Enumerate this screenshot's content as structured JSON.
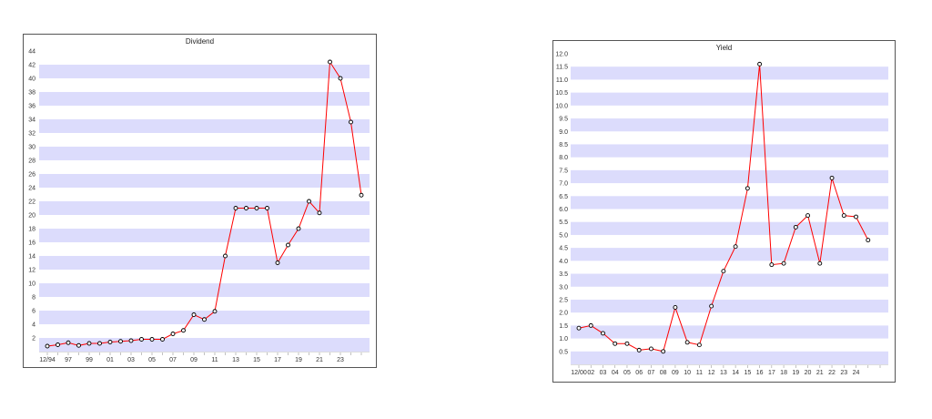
{
  "charts": [
    {
      "id": "dividend",
      "title": "Dividend",
      "type": "line",
      "ylim": [
        0,
        44
      ],
      "y_ticks": [
        2,
        4,
        6,
        8,
        10,
        12,
        14,
        16,
        18,
        20,
        22,
        24,
        26,
        28,
        30,
        32,
        34,
        36,
        38,
        40,
        42,
        44
      ],
      "x_tick_labels": [
        "12/94",
        "97",
        "99",
        "01",
        "03",
        "05",
        "07",
        "09",
        "11",
        "13",
        "15",
        "17",
        "19",
        "21",
        "23"
      ],
      "x_tick_positions": [
        0,
        2,
        4,
        6,
        8,
        10,
        12,
        14,
        16,
        18,
        20,
        22,
        24,
        26,
        28
      ],
      "x_max": 30,
      "grid": "horizontal bands",
      "line_color": "#ff0000",
      "marker": "circle",
      "band_color": "#dcdcfc",
      "y_values": [
        0.8,
        1.0,
        1.3,
        0.9,
        1.2,
        1.2,
        1.4,
        1.5,
        1.6,
        1.8,
        1.8,
        1.8,
        2.6,
        3.1,
        5.4,
        4.7,
        5.9,
        14.0,
        21.0,
        21.0,
        21.0,
        21.0,
        13.0,
        15.6,
        18.0,
        22.0,
        20.3,
        42.4,
        40.0,
        33.6,
        22.9
      ]
    },
    {
      "id": "yield",
      "title": "Yield",
      "type": "line",
      "ylim": [
        0,
        12.0
      ],
      "y_ticks": [
        "0.5",
        "1.0",
        "1.5",
        "2.0",
        "2.5",
        "3.0",
        "3.5",
        "4.0",
        "4.5",
        "5.0",
        "5.5",
        "6.0",
        "6.5",
        "7.0",
        "7.5",
        "8.0",
        "8.5",
        "9.0",
        "9.5",
        "10.0",
        "10.5",
        "11.0",
        "11.5",
        "12.0"
      ],
      "x_tick_labels": [
        "12/00",
        "02",
        "03",
        "04",
        "05",
        "06",
        "07",
        "08",
        "09",
        "10",
        "11",
        "12",
        "13",
        "14",
        "15",
        "16",
        "17",
        "18",
        "19",
        "20",
        "21",
        "22",
        "23",
        "24"
      ],
      "x_tick_positions": [
        0,
        1,
        2,
        3,
        4,
        5,
        6,
        7,
        8,
        9,
        10,
        11,
        12,
        13,
        14,
        15,
        16,
        17,
        18,
        19,
        20,
        21,
        22,
        23
      ],
      "x_max": 25,
      "grid": "horizontal bands",
      "line_color": "#ff0000",
      "marker": "circle",
      "band_color": "#dcdcfc",
      "y_values": [
        1.4,
        1.5,
        1.2,
        0.8,
        0.8,
        0.55,
        0.6,
        0.5,
        2.2,
        0.85,
        0.75,
        2.25,
        3.6,
        4.55,
        6.8,
        11.6,
        3.85,
        3.9,
        5.3,
        5.75,
        3.9,
        7.2,
        5.75,
        5.7,
        4.8
      ]
    }
  ]
}
